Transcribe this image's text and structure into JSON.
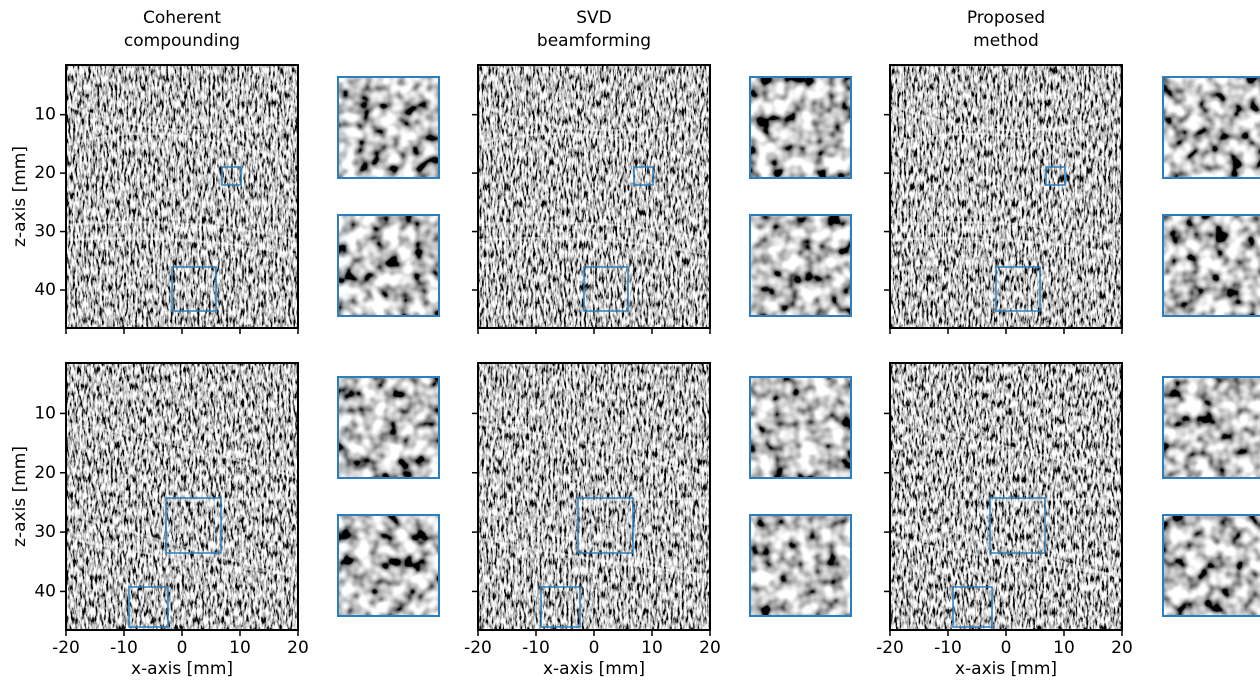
{
  "chart_data": [
    {
      "type": "image",
      "title": [
        "Coherent",
        "compounding"
      ],
      "ylabel": "z-axis [mm]",
      "xlim": [
        -20,
        20
      ],
      "ylim": [
        46.5,
        1.5
      ],
      "xticks": [
        -20,
        -10,
        0,
        10,
        20
      ],
      "yticks": [
        10,
        20,
        30,
        40
      ]
    },
    {
      "type": "image",
      "title": [
        "SVD",
        "beamforming"
      ],
      "xlim": [
        -20,
        20
      ],
      "ylim": [
        46.5,
        1.5
      ],
      "xticks": [
        -20,
        -10,
        0,
        10,
        20
      ],
      "yticks": [
        10,
        20,
        30,
        40
      ]
    },
    {
      "type": "image",
      "title": [
        "Proposed",
        "method"
      ],
      "xlim": [
        -20,
        20
      ],
      "ylim": [
        46.5,
        1.5
      ],
      "xticks": [
        -20,
        -10,
        0,
        10,
        20
      ],
      "yticks": [
        10,
        20,
        30,
        40
      ]
    },
    {
      "type": "image",
      "ylabel": "z-axis [mm]",
      "xlabel": "x-axis [mm]",
      "xlim": [
        -20,
        20
      ],
      "ylim": [
        46.5,
        1.5
      ],
      "xticks": [
        -20,
        -10,
        0,
        10,
        20
      ],
      "yticks": [
        10,
        20,
        30,
        40
      ]
    },
    {
      "type": "image",
      "xlabel": "x-axis [mm]",
      "xlim": [
        -20,
        20
      ],
      "ylim": [
        46.5,
        1.5
      ],
      "xticks": [
        -20,
        -10,
        0,
        10,
        20
      ],
      "yticks": [
        10,
        20,
        30,
        40
      ]
    },
    {
      "type": "image",
      "xlabel": "x-axis [mm]",
      "xlim": [
        -20,
        20
      ],
      "ylim": [
        46.5,
        1.5
      ],
      "xticks": [
        -20,
        -10,
        0,
        10,
        20
      ],
      "yticks": [
        10,
        20,
        30,
        40
      ]
    }
  ]
}
